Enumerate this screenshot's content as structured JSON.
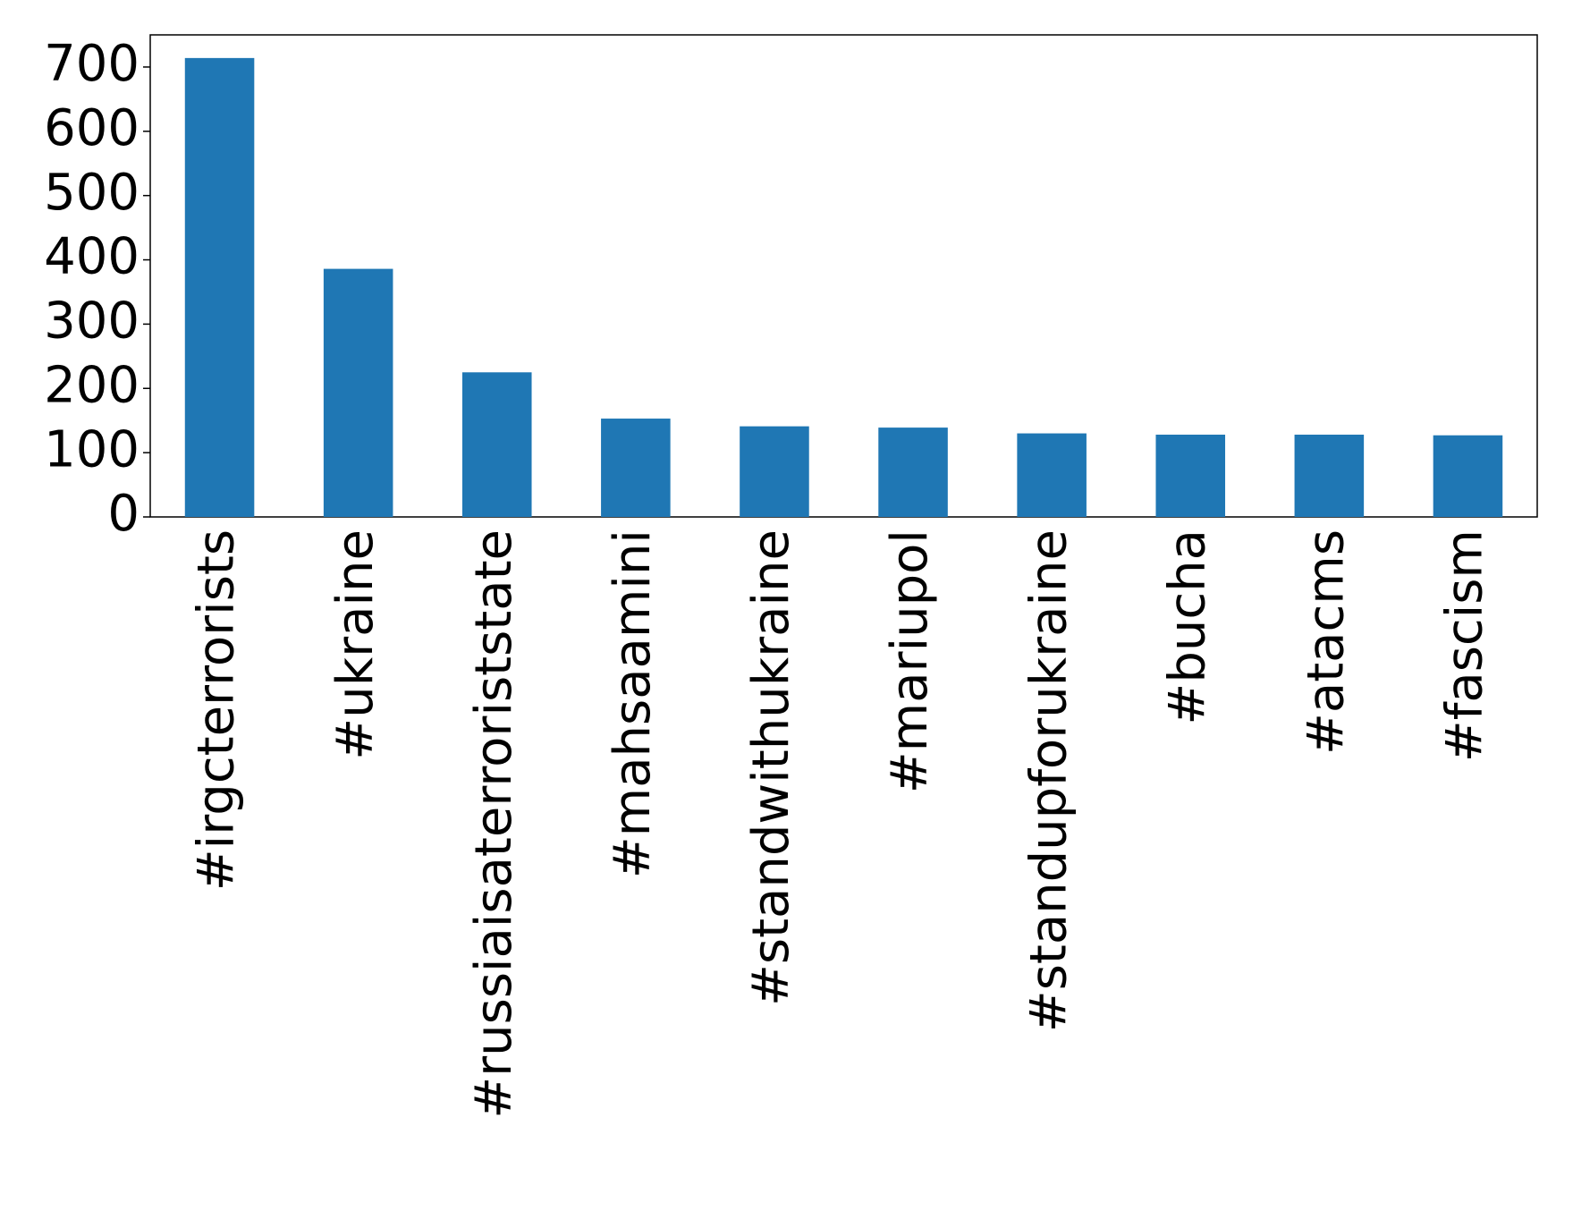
{
  "chart_data": {
    "type": "bar",
    "categories": [
      "#irgcterrorists",
      "#ukraine",
      "#russiaisaterroriststate",
      "#mahsaamini",
      "#standwithukraine",
      "#mariupol",
      "#standupforukraine",
      "#bucha",
      "#atacms",
      "#fascism"
    ],
    "values": [
      714,
      386,
      225,
      153,
      141,
      139,
      130,
      128,
      128,
      127
    ],
    "color": "#1f77b4",
    "ylim": [
      0,
      750
    ],
    "yticks": [
      0,
      100,
      200,
      300,
      400,
      500,
      600,
      700
    ],
    "grid": false
  }
}
